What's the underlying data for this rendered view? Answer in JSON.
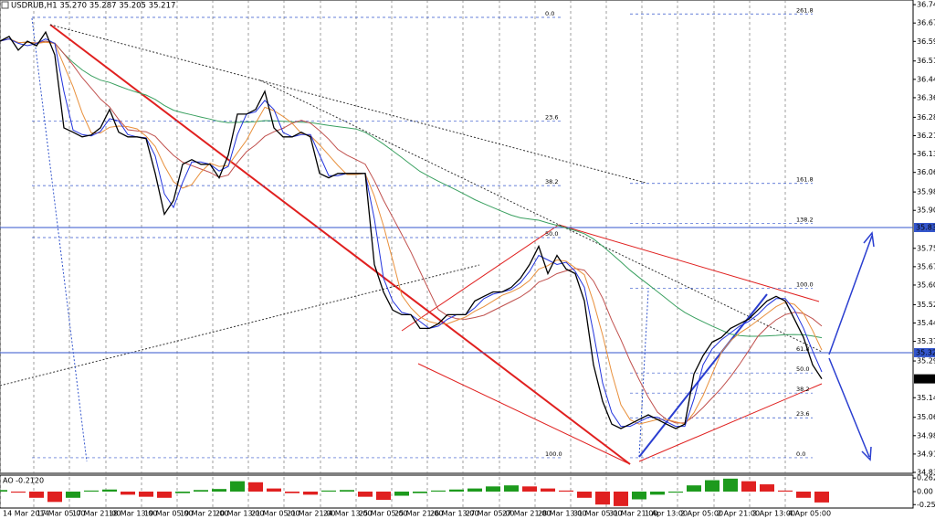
{
  "chart_data": [
    {
      "type": "line",
      "title": "USDRUB,H1  35.270 35.287 35.205 35.217",
      "x": [
        0,
        1,
        2,
        3,
        4,
        5,
        6,
        7,
        8,
        9,
        10,
        11,
        12,
        13,
        14,
        15,
        16,
        17,
        18,
        19,
        20,
        21,
        22,
        23,
        24,
        25,
        26,
        27,
        28,
        29,
        30,
        31,
        32,
        33,
        34,
        35,
        36,
        37,
        38,
        39,
        40,
        41,
        42,
        43,
        44,
        45,
        46,
        47,
        48,
        49,
        50,
        51,
        52,
        53,
        54,
        55,
        56,
        57,
        58,
        59,
        60,
        61,
        62,
        63,
        64,
        65,
        66,
        67,
        68,
        69,
        70,
        71,
        72,
        73,
        74,
        75,
        76,
        77,
        78,
        79,
        80,
        81,
        82,
        83,
        84,
        85,
        86,
        87,
        88,
        89,
        90
      ],
      "series": [
        {
          "color": "#000000",
          "values": [
            36.596,
            36.615,
            36.559,
            36.596,
            36.577,
            36.633,
            36.54,
            36.242,
            36.224,
            36.205,
            36.213,
            36.242,
            36.317,
            36.224,
            36.205,
            36.205,
            36.198,
            36.056,
            35.889,
            35.945,
            36.093,
            36.112,
            36.093,
            36.093,
            36.038,
            36.131,
            36.298,
            36.298,
            36.317,
            36.391,
            36.242,
            36.205,
            36.205,
            36.224,
            36.205,
            36.056,
            36.038,
            36.056,
            36.056,
            36.056,
            36.056,
            35.684,
            35.572,
            35.498,
            35.479,
            35.479,
            35.423,
            35.423,
            35.442,
            35.479,
            35.479,
            35.479,
            35.535,
            35.554,
            35.572,
            35.572,
            35.591,
            35.628,
            35.684,
            35.758,
            35.647,
            35.721,
            35.665,
            35.647,
            35.535,
            35.274,
            35.125,
            35.032,
            35.014,
            35.032,
            35.051,
            35.07,
            35.051,
            35.032,
            35.014,
            35.032,
            35.237,
            35.312,
            35.367,
            35.386,
            35.423,
            35.442,
            35.461,
            35.498,
            35.535,
            35.554,
            35.535,
            35.461,
            35.386,
            35.274,
            35.217
          ]
        }
      ],
      "xlim": [
        0,
        100
      ],
      "xticks": [
        {
          "value": 0,
          "label": "14 Mar 2014"
        },
        {
          "value": 3.7,
          "label": "17 Mar 05:00"
        },
        {
          "value": 7.6,
          "label": "17 Mar 21:00"
        },
        {
          "value": 11.6,
          "label": "18 Mar 13:00"
        },
        {
          "value": 15.5,
          "label": "19 Mar 05:00"
        },
        {
          "value": 19.4,
          "label": "19 Mar 21:00"
        },
        {
          "value": 23.3,
          "label": "20 Mar 13:00"
        },
        {
          "value": 27.2,
          "label": "21 Mar 05:00"
        },
        {
          "value": 31.1,
          "label": "21 Mar 21:00"
        },
        {
          "value": 35.1,
          "label": "24 Mar 13:00"
        },
        {
          "value": 39,
          "label": "25 Mar 05:00"
        },
        {
          "value": 42.9,
          "label": "25 Mar 21:00"
        },
        {
          "value": 46.8,
          "label": "26 Mar 13:00"
        },
        {
          "value": 50.7,
          "label": "27 Mar 05:00"
        },
        {
          "value": 54.7,
          "label": "27 Mar 21:00"
        },
        {
          "value": 58.6,
          "label": "28 Mar 13:00"
        },
        {
          "value": 62.5,
          "label": "31 Mar 05:00"
        },
        {
          "value": 66.4,
          "label": "31 Mar 21:00"
        },
        {
          "value": 70.3,
          "label": "1 Apr 13:00"
        },
        {
          "value": 74.2,
          "label": "2 Apr 05:00"
        },
        {
          "value": 78.2,
          "label": "2 Apr 21:00"
        },
        {
          "value": 82.1,
          "label": "3 Apr 13:00"
        },
        {
          "value": 86,
          "label": "4 Apr 05:00"
        }
      ],
      "ylim": [
        34.835,
        36.764
      ],
      "yticks": [
        36.745,
        {
          "value": 36.67,
          "label": "36.670"
        },
        36.595,
        36.515,
        {
          "value": 36.44,
          "label": "36.440"
        },
        36.365,
        36.285,
        {
          "value": 36.21,
          "label": "36.210"
        },
        36.135,
        {
          "value": 36.06,
          "label": "36.060"
        },
        {
          "value": 35.98,
          "label": "35.980"
        },
        35.905,
        {
          "value": 35.75,
          "label": "35.750"
        },
        35.675,
        {
          "value": 35.6,
          "label": "35.600"
        },
        {
          "value": 35.52,
          "label": "35.520"
        },
        35.445,
        {
          "value": 35.37,
          "label": "35.370"
        },
        {
          "value": 35.29,
          "label": "35.290"
        },
        {
          "value": 35.14,
          "label": "35.140"
        },
        {
          "value": 35.06,
          "label": "35.060"
        },
        34.985,
        {
          "value": 34.91,
          "label": "34.910"
        },
        34.835
      ],
      "grid": true,
      "hlines": [
        35.835,
        35.324
      ],
      "hline_color": "#3355cc",
      "last_price": 35.217,
      "fibo": [
        {
          "color": "#3355cc",
          "levels": [
            {
              "label": "0.0",
              "price": 36.693
            },
            {
              "label": "23.6",
              "price": 36.269
            },
            {
              "label": "38.2",
              "price": 36.006
            },
            {
              "label": "50.0",
              "price": 35.794
            },
            {
              "label": "100.0",
              "price": 34.895
            }
          ]
        },
        {
          "color": "#3355cc",
          "levels": [
            {
              "label": "261.8",
              "price": 36.707
            },
            {
              "label": "161.8",
              "price": 36.015
            },
            {
              "label": "138.2",
              "price": 35.851
            },
            {
              "label": "100.0",
              "price": 35.587
            },
            {
              "label": "61.8",
              "price": 35.323
            },
            {
              "label": "50.0",
              "price": 35.241
            },
            {
              "label": "38.2",
              "price": 35.159
            },
            {
              "label": "23.6",
              "price": 35.058
            },
            {
              "label": "0.0",
              "price": 34.895
            }
          ]
        }
      ]
    },
    {
      "type": "bar",
      "title": "AO -0.2120",
      "x": [
        0,
        2,
        4,
        6,
        8,
        10,
        12,
        14,
        16,
        18,
        20,
        22,
        24,
        26,
        28,
        30,
        32,
        34,
        36,
        38,
        40,
        42,
        44,
        46,
        48,
        50,
        52,
        54,
        56,
        58,
        60,
        62,
        64,
        66,
        68,
        70,
        72,
        74,
        76,
        78,
        80,
        82,
        84,
        86,
        88,
        90
      ],
      "values": [
        0.03,
        -0.02,
        -0.12,
        -0.2,
        -0.12,
        0.02,
        0.04,
        -0.06,
        -0.1,
        -0.12,
        -0.03,
        0.03,
        0.05,
        0.2,
        0.18,
        0.06,
        -0.03,
        -0.06,
        0.02,
        0.03,
        -0.1,
        -0.16,
        -0.08,
        -0.03,
        0.02,
        0.04,
        0.06,
        0.1,
        0.12,
        0.1,
        0.06,
        0.02,
        -0.12,
        -0.25,
        -0.28,
        -0.15,
        -0.06,
        -0.02,
        0.12,
        0.22,
        0.25,
        0.2,
        0.14,
        0.02,
        -0.12,
        -0.21
      ],
      "colors": {
        "up": "#1d9a1d",
        "down": "#e02020"
      },
      "xlim": [
        0,
        100
      ],
      "ylim": [
        -0.3,
        0.3
      ],
      "yticks": [
        0.2627,
        {
          "value": 0,
          "label": "0.00"
        },
        -0.2516
      ]
    }
  ]
}
